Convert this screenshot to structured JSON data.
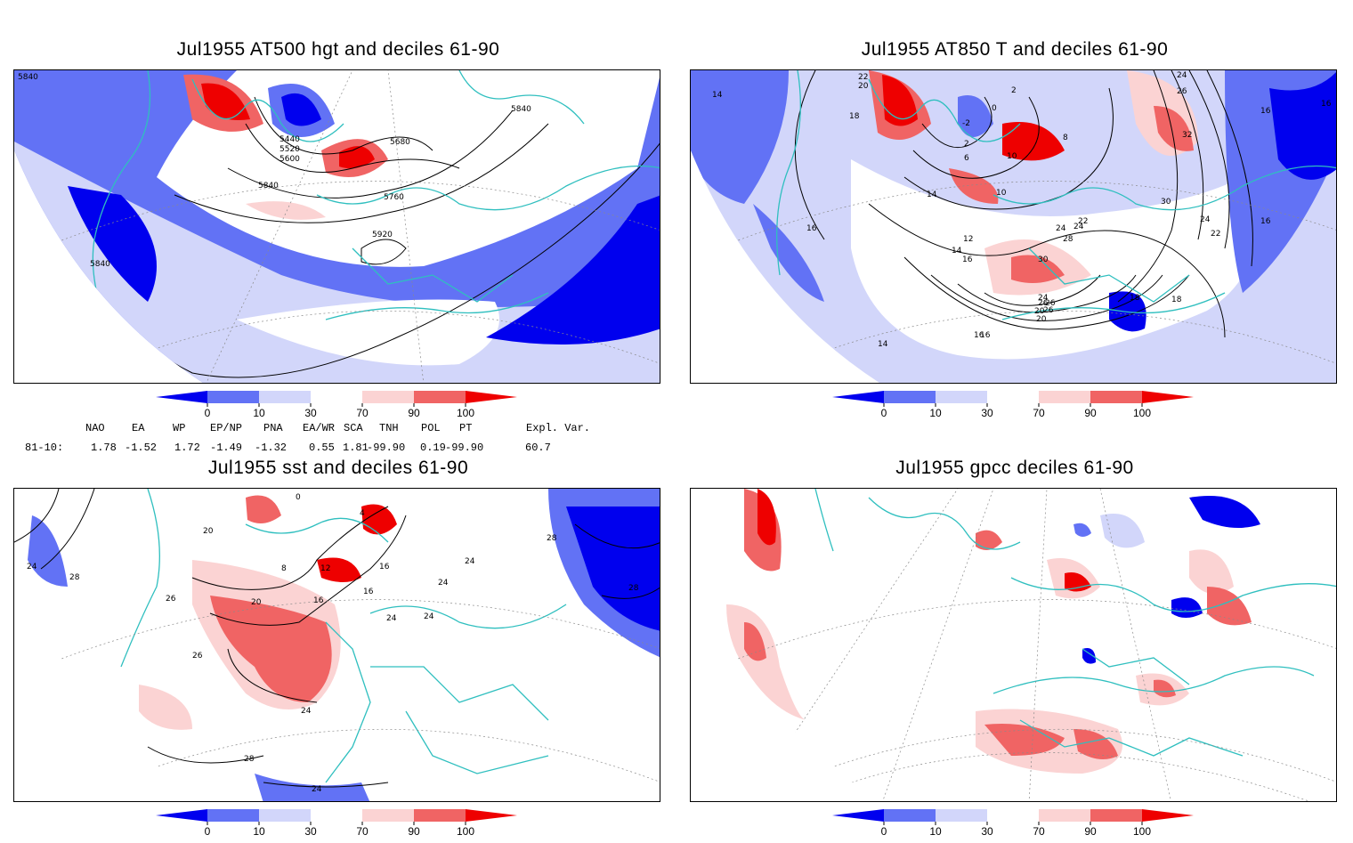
{
  "panels": [
    {
      "title": "Jul1955 AT500 hgt and deciles 61-90",
      "contour_labels": [
        "5840",
        "5440",
        "5520",
        "5600",
        "5680",
        "5840",
        "5760",
        "5920",
        "5840",
        "5840"
      ]
    },
    {
      "title": "Jul1955 AT850 T and deciles 61-90",
      "contour_labels": [
        "22",
        "20",
        "18",
        "14",
        "2",
        "0",
        "-2",
        "2",
        "6",
        "8",
        "10",
        "10",
        "14",
        "16",
        "16",
        "12",
        "14",
        "16",
        "18",
        "20",
        "22",
        "24",
        "26",
        "28",
        "30",
        "24",
        "26",
        "30",
        "32",
        "26",
        "24",
        "24",
        "22",
        "16",
        "16",
        "18",
        "16",
        "20",
        "24",
        "26",
        "14",
        "16"
      ]
    },
    {
      "title": "Jul1955 sst and deciles 61-90",
      "contour_labels": [
        "0",
        "20",
        "24",
        "28",
        "26",
        "4",
        "8",
        "12",
        "16",
        "20",
        "16",
        "16",
        "24",
        "24",
        "24",
        "24",
        "24",
        "28",
        "28",
        "24",
        "28",
        "26"
      ]
    },
    {
      "title": "Jul1955 gpcc deciles 61-90",
      "contour_labels": []
    }
  ],
  "colorbar": {
    "labels": [
      "0",
      "10",
      "30",
      "70",
      "90",
      "100"
    ],
    "colors": [
      "#0000ee",
      "#6272f5",
      "#d2d6fa",
      "#ffffff",
      "#fbd3d3",
      "#f06464",
      "#ee0000"
    ]
  },
  "indices": {
    "header": [
      "NAO",
      "EA",
      "WP",
      "EP/NP",
      "PNA",
      "EA/WR",
      "SCA",
      "TNH",
      "POL",
      "PT",
      "Expl. Var."
    ],
    "row_label": "81-10:",
    "values": [
      "1.78",
      "-1.52",
      "1.72",
      "-1.49",
      "-1.32",
      "0.55",
      "1.81",
      "-99.90",
      "0.19",
      "-99.90",
      "60.7"
    ]
  }
}
